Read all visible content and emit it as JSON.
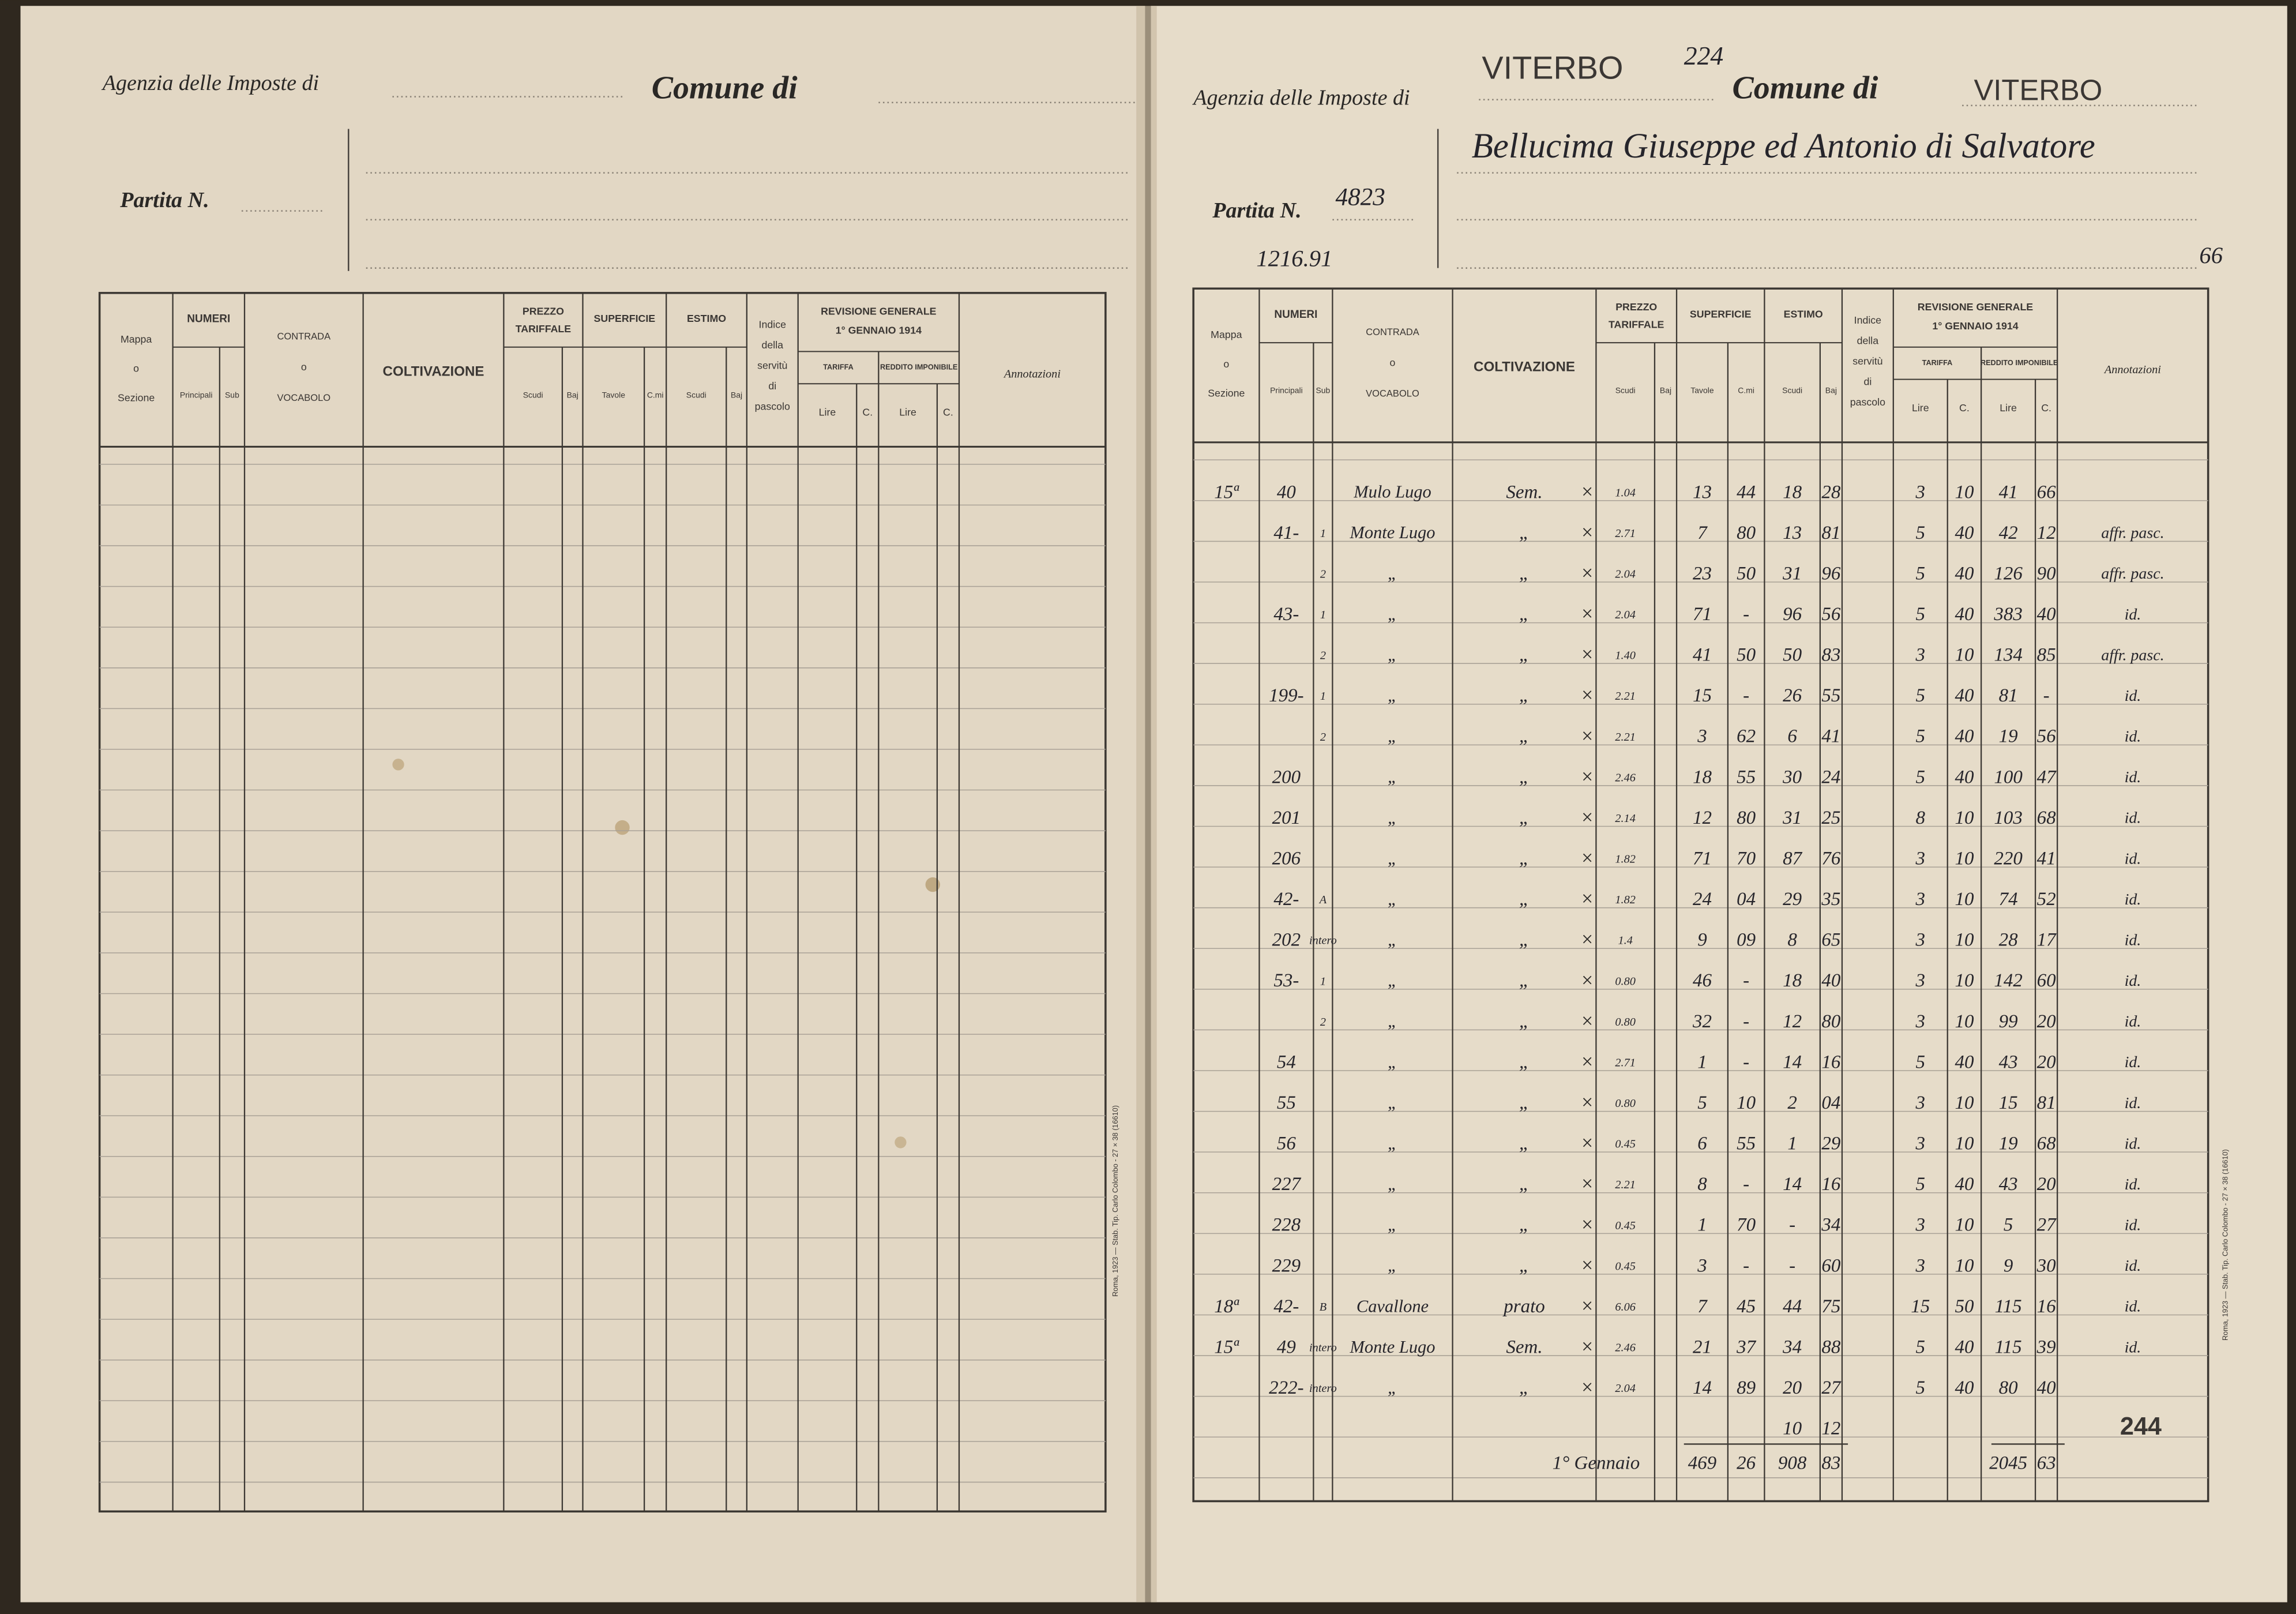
{
  "table_header": {
    "mappa": [
      "Mappa",
      "o",
      "Sezione"
    ],
    "numeri": "NUMERI",
    "principali": "Principali",
    "sub": "Sub",
    "contrada": [
      "CONTRADA",
      "o",
      "VOCABOLO"
    ],
    "coltivazione": "COLTIVAZIONE",
    "prezzo": [
      "PREZZO",
      "TARIFFALE"
    ],
    "prezzo_scudi": "Scudi",
    "prezzo_baj": "Baj",
    "superficie": "SUPERFICIE",
    "tavole": "Tavole",
    "centiare": "C.mi",
    "estimo": "ESTIMO",
    "estimo_scudi": "Scudi",
    "estimo_baj": "Baj",
    "indice": [
      "Indice",
      "della",
      "servitù",
      "di",
      "pascolo"
    ],
    "revisione": [
      "REVISIONE GENERALE",
      "1° GENNAIO 1914"
    ],
    "tariffa": "TARIFFA",
    "reddito": "REDDITO IMPONIBILE",
    "tariffa_lire": "Lire",
    "tariffa_c": "C.",
    "reddito_lire": "Lire",
    "reddito_c": "C.",
    "annotazioni": "Annotazioni"
  },
  "left_page": {
    "agency": "Agenzia delle Imposte di",
    "comune": "Comune di",
    "partita": "Partita N.",
    "printer": "Roma, 1923 — Stab. Tip. Carlo Colombo - 27 × 38 (16610)"
  },
  "right_page": {
    "agency": "Agenzia delle Imposte di",
    "agency_value": "VITERBO",
    "stamp_number": "224",
    "comune": "Comune di",
    "comune_value": "VITERBO",
    "owner": "Bellucima Giuseppe ed Antonio di Salvatore",
    "partita": "Partita N.",
    "partita_value": "4823",
    "reference": "1216.91",
    "page_number": "66",
    "printer": "Roma, 1923 — Stab. Tip. Carlo Colombo - 27 × 38 (16610)",
    "rows": [
      {
        "m": "15ª",
        "n": "40",
        "contrada": "Mulo Lugo",
        "colt": "Sem.",
        "prezzo": "1.04",
        "tav": "13",
        "cmi": "44",
        "es": "18",
        "eb": "28",
        "tl": "3",
        "tc": "10",
        "rl": "41",
        "rc": "66"
      },
      {
        "n": "41-",
        "s": "1",
        "contrada": "Monte Lugo",
        "colt": "„",
        "prezzo": "2.71",
        "tav": "7",
        "cmi": "80",
        "es": "13",
        "eb": "81",
        "tl": "5",
        "tc": "40",
        "rl": "42",
        "rc": "12",
        "ann": "affr. pasc."
      },
      {
        "s": "2",
        "contrada": "„",
        "colt": "„",
        "prezzo": "2.04",
        "tav": "23",
        "cmi": "50",
        "es": "31",
        "eb": "96",
        "tl": "5",
        "tc": "40",
        "rl": "126",
        "rc": "90",
        "ann": "affr. pasc."
      },
      {
        "n": "43-",
        "s": "1",
        "contrada": "„",
        "colt": "„",
        "prezzo": "2.04",
        "tav": "71",
        "cmi": "-",
        "es": "96",
        "eb": "56",
        "tl": "5",
        "tc": "40",
        "rl": "383",
        "rc": "40",
        "ann": "id."
      },
      {
        "s": "2",
        "contrada": "„",
        "colt": "„",
        "prezzo": "1.40",
        "tav": "41",
        "cmi": "50",
        "es": "50",
        "eb": "83",
        "tl": "3",
        "tc": "10",
        "rl": "134",
        "rc": "85",
        "ann": "affr. pasc."
      },
      {
        "n": "199-",
        "s": "1",
        "contrada": "„",
        "colt": "„",
        "prezzo": "2.21",
        "tav": "15",
        "cmi": "-",
        "es": "26",
        "eb": "55",
        "tl": "5",
        "tc": "40",
        "rl": "81",
        "rc": "-",
        "ann": "id."
      },
      {
        "s": "2",
        "contrada": "„",
        "colt": "„",
        "prezzo": "2.21",
        "tav": "3",
        "cmi": "62",
        "es": "6",
        "eb": "41",
        "tl": "5",
        "tc": "40",
        "rl": "19",
        "rc": "56",
        "ann": "id."
      },
      {
        "n": "200",
        "contrada": "„",
        "colt": "„",
        "prezzo": "2.46",
        "tav": "18",
        "cmi": "55",
        "es": "30",
        "eb": "24",
        "tl": "5",
        "tc": "40",
        "rl": "100",
        "rc": "47",
        "ann": "id."
      },
      {
        "n": "201",
        "contrada": "„",
        "colt": "„",
        "prezzo": "2.14",
        "tav": "12",
        "cmi": "80",
        "es": "31",
        "eb": "25",
        "tl": "8",
        "tc": "10",
        "rl": "103",
        "rc": "68",
        "ann": "id."
      },
      {
        "n": "206",
        "contrada": "„",
        "colt": "„",
        "prezzo": "1.82",
        "tav": "71",
        "cmi": "70",
        "es": "87",
        "eb": "76",
        "tl": "3",
        "tc": "10",
        "rl": "220",
        "rc": "41",
        "ann": "id."
      },
      {
        "n": "42-",
        "s": "A",
        "contrada": "„",
        "colt": "„",
        "prezzo": "1.82",
        "tav": "24",
        "cmi": "04",
        "es": "29",
        "eb": "35",
        "tl": "3",
        "tc": "10",
        "rl": "74",
        "rc": "52",
        "ann": "id."
      },
      {
        "n": "202",
        "s": "intero",
        "contrada": "„",
        "colt": "„",
        "prezzo": "1.4",
        "tav": "9",
        "cmi": "09",
        "es": "8",
        "eb": "65",
        "tl": "3",
        "tc": "10",
        "rl": "28",
        "rc": "17",
        "ann": "id."
      },
      {
        "n": "53-",
        "s": "1",
        "contrada": "„",
        "colt": "„",
        "prezzo": "0.80",
        "tav": "46",
        "cmi": "-",
        "es": "18",
        "eb": "40",
        "tl": "3",
        "tc": "10",
        "rl": "142",
        "rc": "60",
        "ann": "id."
      },
      {
        "s": "2",
        "contrada": "„",
        "colt": "„",
        "prezzo": "0.80",
        "tav": "32",
        "cmi": "-",
        "es": "12",
        "eb": "80",
        "tl": "3",
        "tc": "10",
        "rl": "99",
        "rc": "20",
        "ann": "id."
      },
      {
        "n": "54",
        "contrada": "„",
        "colt": "„",
        "prezzo": "2.71",
        "tav": "1",
        "cmi": "-",
        "es": "14",
        "eb": "16",
        "tl": "5",
        "tc": "40",
        "rl": "43",
        "rc": "20",
        "ann": "id."
      },
      {
        "n": "55",
        "contrada": "„",
        "colt": "„",
        "prezzo": "0.80",
        "tav": "5",
        "cmi": "10",
        "es": "2",
        "eb": "04",
        "tl": "3",
        "tc": "10",
        "rl": "15",
        "rc": "81",
        "ann": "id."
      },
      {
        "n": "56",
        "contrada": "„",
        "colt": "„",
        "prezzo": "0.45",
        "tav": "6",
        "cmi": "55",
        "es": "1",
        "eb": "29",
        "tl": "3",
        "tc": "10",
        "rl": "19",
        "rc": "68",
        "ann": "id."
      },
      {
        "n": "227",
        "contrada": "„",
        "colt": "„",
        "prezzo": "2.21",
        "tav": "8",
        "cmi": "-",
        "es": "14",
        "eb": "16",
        "tl": "5",
        "tc": "40",
        "rl": "43",
        "rc": "20",
        "ann": "id."
      },
      {
        "n": "228",
        "contrada": "„",
        "colt": "„",
        "prezzo": "0.45",
        "tav": "1",
        "cmi": "70",
        "es": "-",
        "eb": "34",
        "tl": "3",
        "tc": "10",
        "rl": "5",
        "rc": "27",
        "ann": "id."
      },
      {
        "n": "229",
        "contrada": "„",
        "colt": "„",
        "prezzo": "0.45",
        "tav": "3",
        "cmi": "-",
        "es": "-",
        "eb": "60",
        "tl": "3",
        "tc": "10",
        "rl": "9",
        "rc": "30",
        "ann": "id."
      },
      {
        "m": "18ª",
        "n": "42-",
        "s": "B",
        "contrada": "Cavallone",
        "colt": "prato",
        "prezzo": "6.06",
        "tav": "7",
        "cmi": "45",
        "es": "44",
        "eb": "75",
        "tl": "15",
        "tc": "50",
        "rl": "115",
        "rc": "16",
        "ann": "id."
      },
      {
        "m": "15ª",
        "n": "49",
        "s": "intero",
        "contrada": "Monte Lugo",
        "colt": "Sem.",
        "prezzo": "2.46",
        "tav": "21",
        "cmi": "37",
        "es": "34",
        "eb": "88",
        "tl": "5",
        "tc": "40",
        "rl": "115",
        "rc": "39",
        "ann": "id."
      },
      {
        "n": "222-",
        "s": "intero",
        "contrada": "„",
        "colt": "„",
        "prezzo": "2.04",
        "tav": "14",
        "cmi": "89",
        "es": "20",
        "eb": "27",
        "tl": "5",
        "tc": "40",
        "rl": "80",
        "rc": "40"
      },
      {
        "es": "10",
        "eb": "12"
      }
    ],
    "stamp_page": "244",
    "totals": {
      "label": "1° Gennaio",
      "tav": "469",
      "cmi": "26",
      "es": "908",
      "eb": "83",
      "rl": "2045",
      "rc": "63"
    }
  }
}
